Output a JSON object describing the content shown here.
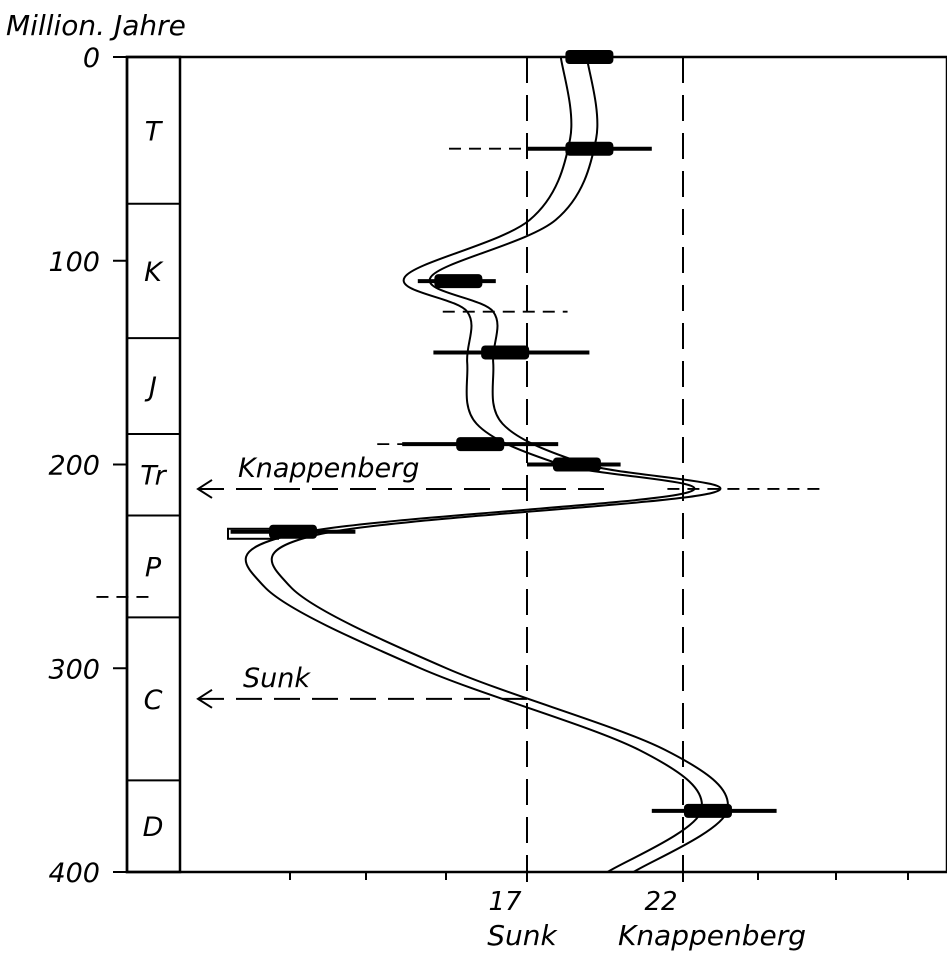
{
  "chart_data": {
    "type": "line",
    "ylabel": "Million. Jahre",
    "y_ticks": [
      "0",
      "100",
      "200",
      "300",
      "400"
    ],
    "ylim": [
      0,
      400
    ],
    "x_ticks": [
      "17",
      "22"
    ],
    "x_tick_values": [
      17,
      22
    ],
    "x_sublabels": [
      "Sunk",
      "Knappenberg"
    ],
    "periods": [
      {
        "label": "T",
        "from": 0,
        "to": 72
      },
      {
        "label": "K",
        "from": 72,
        "to": 138
      },
      {
        "label": "J",
        "from": 138,
        "to": 185
      },
      {
        "label": "Tr",
        "from": 185,
        "to": 225
      },
      {
        "label": "P",
        "from": 225,
        "to": 275
      },
      {
        "label": "C",
        "from": 275,
        "to": 355
      },
      {
        "label": "D",
        "from": 355,
        "to": 400
      }
    ],
    "reference_lines": [
      {
        "name": "Sunk",
        "x": 17
      },
      {
        "name": "Knappenberg",
        "x": 22
      }
    ],
    "annotations": [
      {
        "text": "Knappenberg",
        "age": 212
      },
      {
        "text": "Sunk",
        "age": 315
      }
    ],
    "series": [
      {
        "band_center": [
          {
            "y": 0,
            "x": 18.5
          },
          {
            "y": 40,
            "x": 18.8
          },
          {
            "y": 80,
            "x": 17.5
          },
          {
            "y": 108,
            "x": 13.5
          },
          {
            "y": 125,
            "x": 15.5
          },
          {
            "y": 150,
            "x": 15.5
          },
          {
            "y": 180,
            "x": 15.8
          },
          {
            "y": 200,
            "x": 18.5
          },
          {
            "y": 214,
            "x": 22.5
          },
          {
            "y": 234,
            "x": 10.0
          },
          {
            "y": 260,
            "x": 9.0
          },
          {
            "y": 300,
            "x": 14.0
          },
          {
            "y": 340,
            "x": 21.0
          },
          {
            "y": 370,
            "x": 23.0
          },
          {
            "y": 400,
            "x": 20.0
          }
        ]
      }
    ],
    "pole_data": [
      {
        "age": 0,
        "x": 19.0,
        "err_low": 18.5,
        "err_high": 19.5
      },
      {
        "age": 45,
        "x": 19.0,
        "err_low": 17.0,
        "err_high": 21.0
      },
      {
        "age": 110,
        "x": 14.8,
        "err_low": 13.5,
        "err_high": 16.0
      },
      {
        "age": 145,
        "x": 16.3,
        "err_low": 14.0,
        "err_high": 19.0
      },
      {
        "age": 190,
        "x": 15.5,
        "err_low": 13.0,
        "err_high": 18.0
      },
      {
        "age": 200,
        "x": 18.6,
        "err_low": 17.0,
        "err_high": 20.0
      },
      {
        "age": 233,
        "x": 9.5,
        "err_low": 7.5,
        "err_high": 11.5
      },
      {
        "age": 370,
        "x": 22.8,
        "err_low": 21.0,
        "err_high": 25.0
      }
    ]
  },
  "style": {
    "ink": "#000000",
    "paper": "#ffffff"
  }
}
